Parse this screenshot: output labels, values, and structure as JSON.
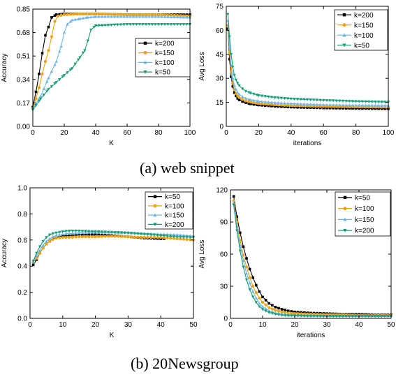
{
  "captions": {
    "top": "(a) web snippet",
    "bottom": "(b) 20Newsgroup"
  },
  "chart_data": [
    {
      "id": "web-accuracy",
      "type": "line",
      "xlabel": "K",
      "ylabel": "Accuracy",
      "xlim": [
        0,
        100
      ],
      "ylim": [
        0,
        0.85
      ],
      "xticks": [
        "0",
        "20",
        "40",
        "60",
        "80",
        "100"
      ],
      "yticks": [
        "0.00",
        "0.17",
        "0.34",
        "0.51",
        "0.68",
        "0.85"
      ],
      "legend_position": "right",
      "series": [
        {
          "name": "k=200",
          "color": "#000000",
          "marker": "square",
          "x": [
            0,
            2,
            4,
            6,
            8,
            10,
            12,
            15,
            20,
            30,
            40,
            60,
            80,
            100
          ],
          "y": [
            0.14,
            0.25,
            0.38,
            0.53,
            0.66,
            0.72,
            0.79,
            0.81,
            0.815,
            0.815,
            0.815,
            0.81,
            0.81,
            0.81
          ]
        },
        {
          "name": "k=150",
          "color": "#F0A30A",
          "marker": "circle",
          "x": [
            0,
            2,
            4,
            6,
            8,
            10,
            12,
            14,
            16,
            20,
            30,
            40,
            60,
            80,
            100
          ],
          "y": [
            0.13,
            0.2,
            0.28,
            0.38,
            0.47,
            0.55,
            0.65,
            0.76,
            0.8,
            0.81,
            0.815,
            0.815,
            0.81,
            0.81,
            0.8
          ]
        },
        {
          "name": "k=100",
          "color": "#6FB7E8",
          "marker": "triangle-up",
          "x": [
            0,
            5,
            10,
            15,
            18,
            20,
            22,
            25,
            30,
            35,
            40,
            60,
            80,
            100
          ],
          "y": [
            0.13,
            0.22,
            0.35,
            0.47,
            0.58,
            0.68,
            0.74,
            0.77,
            0.78,
            0.79,
            0.795,
            0.795,
            0.795,
            0.79
          ]
        },
        {
          "name": "k=50",
          "color": "#1A9E7A",
          "marker": "triangle-down",
          "x": [
            0,
            5,
            10,
            15,
            20,
            25,
            30,
            33,
            35,
            37,
            40,
            60,
            80,
            100
          ],
          "y": [
            0.12,
            0.2,
            0.27,
            0.32,
            0.37,
            0.42,
            0.5,
            0.55,
            0.62,
            0.7,
            0.73,
            0.74,
            0.74,
            0.74
          ]
        }
      ]
    },
    {
      "id": "web-loss",
      "type": "line",
      "xlabel": "iterations",
      "ylabel": "Avg Loss",
      "xlim": [
        0,
        100
      ],
      "ylim": [
        0,
        75
      ],
      "xticks": [
        "0",
        "20",
        "40",
        "60",
        "80",
        "100"
      ],
      "yticks": [
        "0",
        "15",
        "30",
        "45",
        "60",
        "75"
      ],
      "legend_position": "top-right",
      "series": [
        {
          "name": "k=200",
          "color": "#000000",
          "marker": "square",
          "x": [
            1,
            2,
            3,
            4,
            5,
            6,
            7,
            8,
            10,
            12,
            15,
            20,
            30,
            40,
            60,
            80,
            100
          ],
          "y": [
            61,
            42,
            31,
            25,
            21,
            19,
            17.5,
            16.5,
            15.5,
            14.8,
            14,
            13.3,
            12.5,
            12,
            11.5,
            11.2,
            11
          ]
        },
        {
          "name": "k=150",
          "color": "#F0A30A",
          "marker": "circle",
          "x": [
            1,
            2,
            3,
            4,
            5,
            6,
            7,
            8,
            10,
            12,
            15,
            20,
            30,
            40,
            60,
            80,
            100
          ],
          "y": [
            63,
            46,
            34,
            27,
            23,
            20.5,
            19,
            18,
            16.8,
            16,
            15.2,
            14.3,
            13.5,
            13,
            12.5,
            12.2,
            12
          ]
        },
        {
          "name": "k=100",
          "color": "#6FB7E8",
          "marker": "triangle-up",
          "x": [
            1,
            2,
            3,
            4,
            5,
            6,
            7,
            8,
            10,
            12,
            15,
            20,
            30,
            40,
            60,
            80,
            100
          ],
          "y": [
            66,
            50,
            38,
            30,
            25.5,
            23,
            21,
            20,
            18.5,
            17.5,
            16.6,
            15.6,
            14.8,
            14.2,
            13.5,
            13.2,
            13
          ]
        },
        {
          "name": "k=50",
          "color": "#1A9E7A",
          "marker": "triangle-down",
          "x": [
            1,
            2,
            3,
            4,
            5,
            6,
            7,
            8,
            10,
            12,
            15,
            20,
            30,
            40,
            60,
            80,
            100
          ],
          "y": [
            70,
            56,
            45,
            37,
            32,
            29,
            27,
            25.5,
            23.5,
            22,
            20.8,
            19.3,
            18,
            17.2,
            16.3,
            15.6,
            15.2
          ]
        }
      ]
    },
    {
      "id": "news-accuracy",
      "type": "line",
      "xlabel": "K",
      "ylabel": "Accuracy",
      "xlim": [
        0,
        50
      ],
      "ylim": [
        0,
        1.0
      ],
      "xticks": [
        "0",
        "10",
        "20",
        "30",
        "40",
        "50"
      ],
      "yticks": [
        "0.0",
        "0.2",
        "0.4",
        "0.6",
        "0.8",
        "1.0"
      ],
      "legend_position": "top-right",
      "series": [
        {
          "name": "k=50",
          "color": "#000000",
          "marker": "square",
          "x": [
            1,
            2,
            3,
            4,
            5,
            6,
            7,
            8,
            10,
            12,
            15,
            20,
            25,
            30,
            35,
            40,
            41
          ],
          "y": [
            0.41,
            0.45,
            0.5,
            0.54,
            0.57,
            0.59,
            0.61,
            0.62,
            0.63,
            0.635,
            0.64,
            0.64,
            0.635,
            0.625,
            0.615,
            0.61,
            0.61
          ]
        },
        {
          "name": "k=100",
          "color": "#F0A30A",
          "marker": "circle",
          "x": [
            1,
            2,
            3,
            4,
            5,
            6,
            7,
            8,
            10,
            12,
            15,
            20,
            25,
            30,
            35,
            40,
            45,
            50
          ],
          "y": [
            0.43,
            0.46,
            0.5,
            0.54,
            0.57,
            0.59,
            0.605,
            0.615,
            0.62,
            0.62,
            0.625,
            0.625,
            0.63,
            0.625,
            0.62,
            0.62,
            0.61,
            0.6
          ]
        },
        {
          "name": "k=150",
          "color": "#6FB7E8",
          "marker": "triangle-up",
          "x": [
            1,
            2,
            3,
            4,
            5,
            6,
            7,
            8,
            10,
            12,
            15,
            20,
            25,
            30,
            35,
            40,
            45,
            50
          ],
          "y": [
            0.43,
            0.48,
            0.52,
            0.56,
            0.59,
            0.61,
            0.625,
            0.635,
            0.645,
            0.65,
            0.655,
            0.66,
            0.66,
            0.655,
            0.65,
            0.645,
            0.64,
            0.63
          ]
        },
        {
          "name": "k=200",
          "color": "#1A9E7A",
          "marker": "triangle-down",
          "x": [
            1,
            2,
            3,
            4,
            5,
            6,
            7,
            8,
            10,
            12,
            15,
            20,
            25,
            30,
            35,
            40,
            45,
            50
          ],
          "y": [
            0.44,
            0.5,
            0.55,
            0.59,
            0.62,
            0.64,
            0.65,
            0.655,
            0.665,
            0.67,
            0.67,
            0.665,
            0.66,
            0.655,
            0.645,
            0.635,
            0.625,
            0.62
          ]
        }
      ]
    },
    {
      "id": "news-loss",
      "type": "line",
      "xlabel": "iterations",
      "ylabel": "Avg Loss",
      "xlim": [
        0,
        50
      ],
      "ylim": [
        0,
        120
      ],
      "xticks": [
        "0",
        "10",
        "20",
        "30",
        "40",
        "50"
      ],
      "yticks": [
        "0",
        "30",
        "60",
        "90",
        "120"
      ],
      "legend_position": "top-right",
      "series": [
        {
          "name": "k=50",
          "color": "#000000",
          "marker": "square",
          "x": [
            1,
            2,
            3,
            4,
            5,
            6,
            7,
            8,
            9,
            10,
            12,
            14,
            16,
            18,
            20,
            25,
            30,
            35,
            40,
            45,
            50
          ],
          "y": [
            114,
            95,
            80,
            67,
            56,
            46,
            38,
            31,
            25,
            20,
            14,
            10.5,
            8.5,
            7,
            6,
            5,
            4.5,
            4,
            4,
            3.5,
            3.5
          ]
        },
        {
          "name": "k=100",
          "color": "#F0A30A",
          "marker": "circle",
          "x": [
            1,
            2,
            3,
            4,
            5,
            6,
            7,
            8,
            9,
            10,
            12,
            14,
            16,
            18,
            20,
            25,
            30,
            35,
            40,
            45,
            50
          ],
          "y": [
            110,
            90,
            73,
            59,
            48,
            38,
            30,
            24,
            19,
            15,
            10,
            7.5,
            6,
            5,
            4.5,
            4,
            3.5,
            3.5,
            3,
            3,
            3
          ]
        },
        {
          "name": "k=150",
          "color": "#6FB7E8",
          "marker": "triangle-up",
          "x": [
            1,
            2,
            3,
            4,
            5,
            6,
            7,
            8,
            9,
            10,
            12,
            14,
            16,
            18,
            20,
            25,
            30,
            35,
            40,
            45,
            50
          ],
          "y": [
            108,
            86,
            68,
            54,
            42,
            33,
            25,
            19,
            14,
            11,
            7,
            5,
            4,
            3.5,
            3,
            3,
            2.5,
            2.5,
            2.5,
            2.5,
            2.5
          ]
        },
        {
          "name": "k=200",
          "color": "#1A9E7A",
          "marker": "triangle-down",
          "x": [
            1,
            2,
            3,
            4,
            5,
            6,
            7,
            8,
            9,
            10,
            12,
            14,
            16,
            18,
            20,
            25,
            30,
            35,
            40,
            45,
            50
          ],
          "y": [
            106,
            82,
            63,
            48,
            36,
            27,
            20,
            15,
            11,
            8.5,
            5.5,
            4,
            3,
            2.5,
            2.5,
            2,
            2,
            2,
            2,
            2,
            2
          ]
        }
      ]
    }
  ]
}
